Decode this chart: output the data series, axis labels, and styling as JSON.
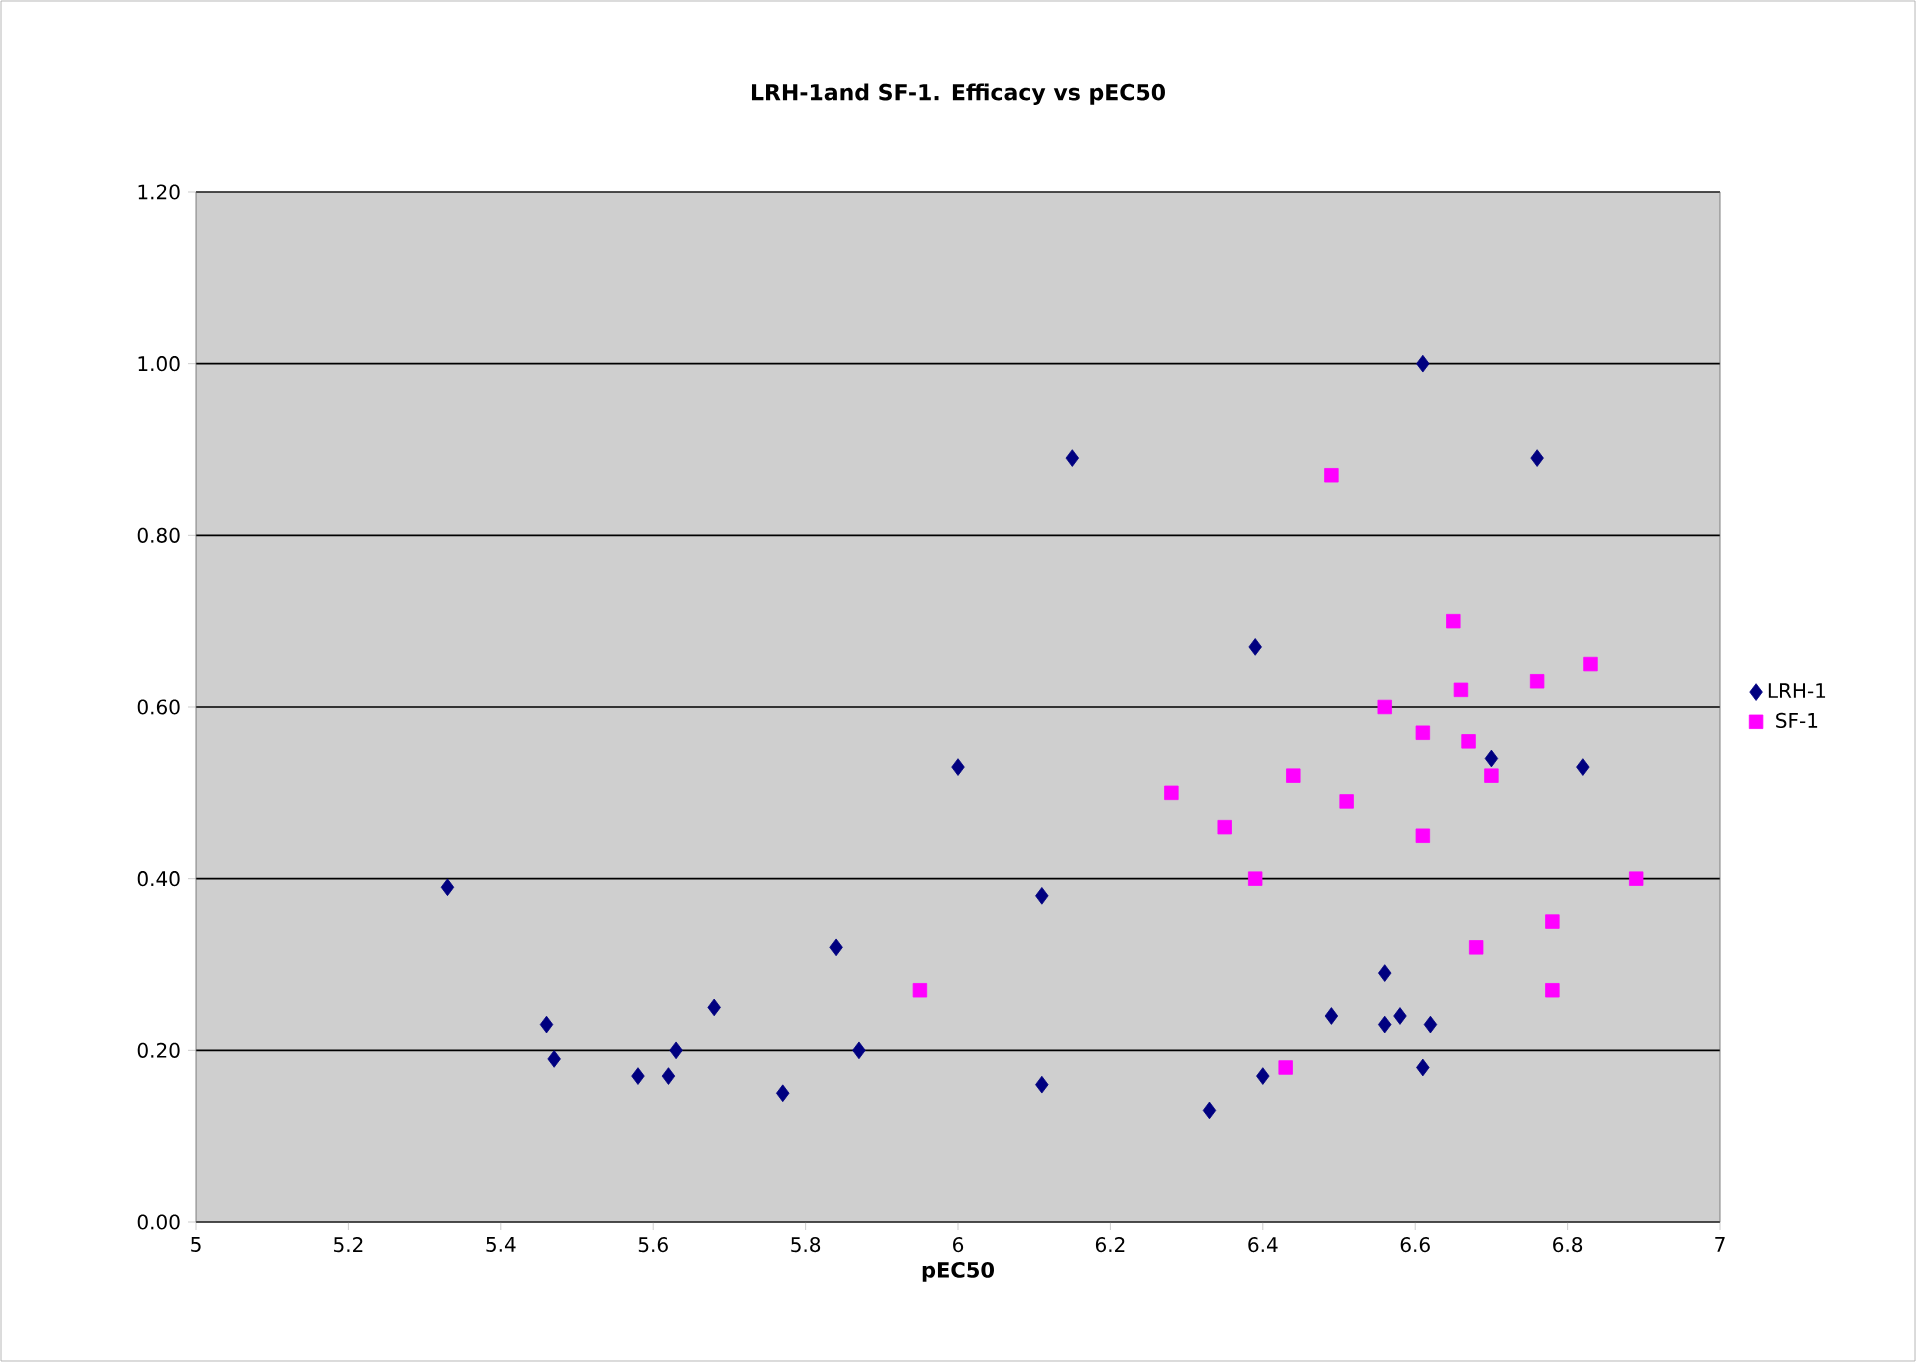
{
  "chart_data": {
    "type": "scatter",
    "title": "LRH-1and SF-1. Efficacy vs pEC50",
    "xlabel": "pEC50",
    "xlim": [
      5,
      7
    ],
    "xticks": [
      5,
      5.2,
      5.4,
      5.6,
      5.8,
      6,
      6.2,
      6.4,
      6.6,
      6.8,
      7
    ],
    "ylim": [
      0,
      1.2
    ],
    "yticks": [
      {
        "value": 0,
        "label": "0.00"
      },
      {
        "value": 0.2,
        "label": "0.20"
      },
      {
        "value": 0.4,
        "label": "0.40"
      },
      {
        "value": 0.6,
        "label": "0.60"
      },
      {
        "value": 0.8,
        "label": "0.80"
      },
      {
        "value": 1.0,
        "label": "1.00"
      },
      {
        "value": 1.2,
        "label": "1.20"
      }
    ],
    "grid": "y",
    "legend": "right",
    "series": [
      {
        "name": "LRH-1",
        "color": "#000080",
        "marker": "diamond",
        "x": [
          5.33,
          5.46,
          5.47,
          5.58,
          5.62,
          5.63,
          5.68,
          5.77,
          5.84,
          5.87,
          6.0,
          6.11,
          6.11,
          6.15,
          6.33,
          6.39,
          6.4,
          6.49,
          6.56,
          6.56,
          6.58,
          6.61,
          6.61,
          6.62,
          6.7,
          6.76,
          6.82
        ],
        "values": [
          0.39,
          0.23,
          0.19,
          0.17,
          0.17,
          0.2,
          0.25,
          0.15,
          0.32,
          0.2,
          0.53,
          0.38,
          0.16,
          0.89,
          0.13,
          0.67,
          0.17,
          0.24,
          0.29,
          0.23,
          0.24,
          1.0,
          0.18,
          0.23,
          0.54,
          0.89,
          0.53
        ]
      },
      {
        "name": "SF-1",
        "color": "#ff00ff",
        "marker": "square",
        "x": [
          5.95,
          6.28,
          6.35,
          6.39,
          6.43,
          6.44,
          6.49,
          6.51,
          6.56,
          6.61,
          6.61,
          6.65,
          6.66,
          6.67,
          6.68,
          6.7,
          6.76,
          6.78,
          6.78,
          6.83,
          6.89
        ],
        "values": [
          0.27,
          0.5,
          0.46,
          0.4,
          0.18,
          0.52,
          0.87,
          0.49,
          0.6,
          0.57,
          0.45,
          0.7,
          0.62,
          0.56,
          0.32,
          0.52,
          0.63,
          0.35,
          0.27,
          0.65,
          0.4
        ]
      }
    ]
  }
}
